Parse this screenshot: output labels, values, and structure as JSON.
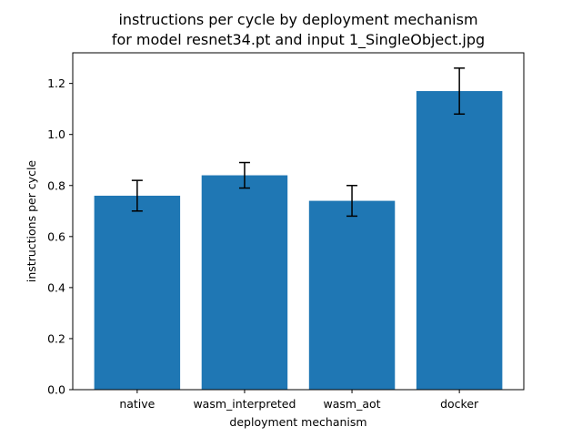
{
  "chart_data": {
    "type": "bar",
    "title_lines": [
      "instructions per cycle by deployment mechanism",
      "for model resnet34.pt and input 1_SingleObject.jpg"
    ],
    "xlabel": "deployment mechanism",
    "ylabel": "instructions per cycle",
    "categories": [
      "native",
      "wasm_interpreted",
      "wasm_aot",
      "docker"
    ],
    "values": [
      0.76,
      0.84,
      0.74,
      1.17
    ],
    "errors": [
      0.06,
      0.05,
      0.06,
      0.09
    ],
    "ylim": [
      0,
      1.32
    ],
    "yticks": [
      0.0,
      0.2,
      0.4,
      0.6,
      0.8,
      1.0,
      1.2
    ],
    "ytick_labels": [
      "0.0",
      "0.2",
      "0.4",
      "0.6",
      "0.8",
      "1.0",
      "1.2"
    ],
    "bar_color": "#1f77b4",
    "error_color": "#000000",
    "grid": false,
    "legend": "none"
  }
}
